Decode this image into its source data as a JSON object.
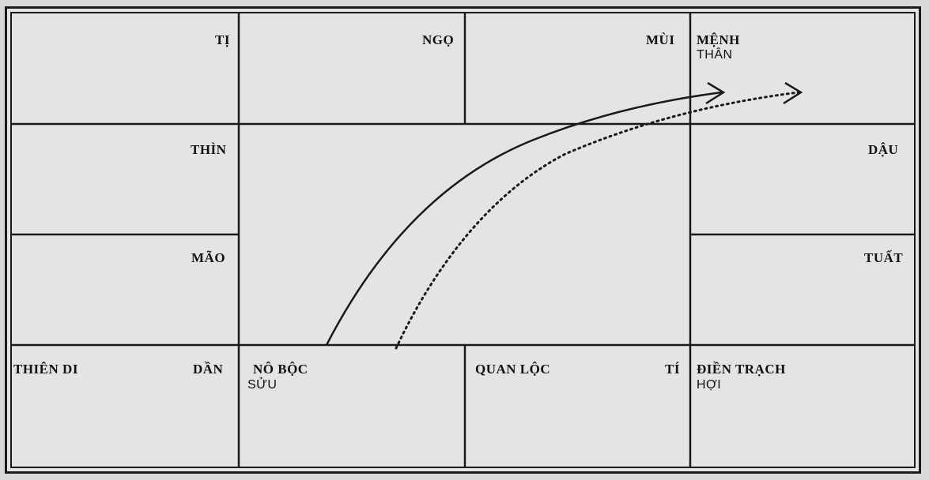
{
  "cells": {
    "ti": "TỊ",
    "ngo": "NGỌ",
    "mui": "MÙI",
    "menh": "MỆNH",
    "than": "THÂN",
    "thin": "THÌN",
    "dau": "DẬU",
    "mao": "MÃO",
    "tuat": "TUẤT",
    "thien_di": "THIÊN DI",
    "dan": "DẦN",
    "no_boc": "NÔ BỘC",
    "suu": "SỬU",
    "quan_loc": "QUAN LỘC",
    "ti2": "TÍ",
    "dien_trach": "ĐIỀN TRẠCH",
    "hoi": "HỢI"
  },
  "arrows": {
    "solid": "Nô Bộc → Mệnh",
    "dotted": "Nô Bộc → Mệnh"
  },
  "colors": {
    "ink": "#1a1a1a",
    "paper": "#e4e4e4"
  }
}
